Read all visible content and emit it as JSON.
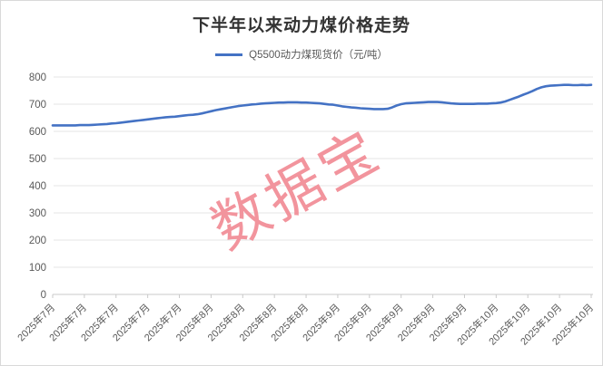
{
  "chart_data": {
    "type": "line",
    "title": "下半年以来动力煤价格走势",
    "legend": [
      {
        "label": "Q5500动力煤现货价（元/吨）",
        "color": "#4472c4"
      }
    ],
    "legend_position": "top-center",
    "grid": "horizontal-only",
    "ylim": [
      0,
      800
    ],
    "y_ticks": [
      0,
      100,
      200,
      300,
      400,
      500,
      600,
      700,
      800
    ],
    "x_tick_labels": [
      "2025年7月",
      "2025年7月",
      "2025年7月",
      "2025年7月",
      "2025年7月",
      "2025年8月",
      "2025年8月",
      "2025年8月",
      "2025年8月",
      "2025年9月",
      "2025年9月",
      "2025年9月",
      "2025年9月",
      "2025年9月",
      "2025年10月",
      "2025年10月",
      "2025年10月",
      "2025年10月"
    ],
    "series": [
      {
        "name": "Q5500动力煤现货价（元/吨）",
        "values": [
          622,
          622,
          622,
          622,
          622,
          622,
          623,
          623,
          623,
          624,
          625,
          626,
          627,
          629,
          630,
          632,
          634,
          636,
          638,
          640,
          642,
          644,
          646,
          648,
          650,
          652,
          653,
          654,
          656,
          658,
          660,
          661,
          663,
          666,
          670,
          674,
          678,
          681,
          684,
          687,
          690,
          693,
          695,
          697,
          699,
          700,
          702,
          703,
          704,
          705,
          706,
          706,
          707,
          707,
          707,
          706,
          706,
          705,
          704,
          703,
          701,
          699,
          698,
          695,
          692,
          690,
          688,
          687,
          685,
          684,
          683,
          682,
          682,
          682,
          683,
          688,
          695,
          700,
          703,
          704,
          705,
          706,
          707,
          708,
          708,
          708,
          707,
          705,
          703,
          702,
          701,
          701,
          701,
          701,
          702,
          702,
          702,
          703,
          704,
          706,
          710,
          716,
          722,
          728,
          735,
          741,
          748,
          756,
          762,
          766,
          768,
          769,
          770,
          771,
          771,
          770,
          770,
          771,
          770,
          771
        ]
      }
    ]
  },
  "watermark": {
    "text": "数据宝",
    "color": "#f2949d"
  },
  "colors": {
    "line": "#4472c4",
    "gridline": "#e6e6e6",
    "axis_line": "#c9c9c9",
    "axis_text": "#595959",
    "title_text": "#333333",
    "border": "#d9d9d9"
  }
}
